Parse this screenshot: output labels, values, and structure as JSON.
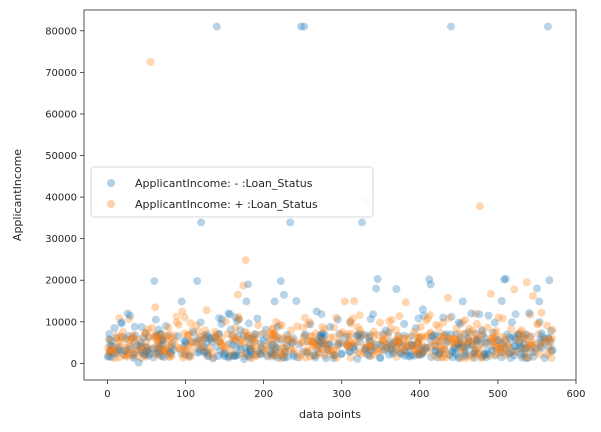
{
  "chart_data": {
    "type": "scatter",
    "xlabel": "data points",
    "ylabel": "ApplicantIncome",
    "xlim": [
      -30,
      600
    ],
    "ylim": [
      -4000,
      85000
    ],
    "xticks": [
      0,
      100,
      200,
      300,
      400,
      500,
      600
    ],
    "yticks": [
      0,
      10000,
      20000,
      30000,
      40000,
      50000,
      60000,
      70000,
      80000
    ],
    "grid": false,
    "legend_position": "center-left",
    "series": [
      {
        "name": "ApplicantIncome: - :Loan_Status",
        "color": "#1f77b4",
        "points": [
          [
            2,
            5800
          ],
          [
            5,
            1500
          ],
          [
            9,
            8500
          ],
          [
            12,
            2500
          ],
          [
            15,
            3800
          ],
          [
            18,
            9900
          ],
          [
            22,
            3000
          ],
          [
            26,
            12000
          ],
          [
            29,
            11500
          ],
          [
            33,
            2000
          ],
          [
            35,
            8800
          ],
          [
            38,
            4200
          ],
          [
            40,
            200
          ],
          [
            43,
            5000
          ],
          [
            46,
            6200
          ],
          [
            50,
            3000
          ],
          [
            54,
            2300
          ],
          [
            58,
            3500
          ],
          [
            60,
            19800
          ],
          [
            62,
            10500
          ],
          [
            66,
            2900
          ],
          [
            70,
            4500
          ],
          [
            72,
            1500
          ],
          [
            75,
            9000
          ],
          [
            80,
            2600
          ],
          [
            85,
            3300
          ],
          [
            90,
            6500
          ],
          [
            95,
            14900
          ],
          [
            100,
            5300
          ],
          [
            105,
            1900
          ],
          [
            110,
            7500
          ],
          [
            115,
            19800
          ],
          [
            118,
            2800
          ],
          [
            120,
            33900
          ],
          [
            125,
            6000
          ],
          [
            128,
            2200
          ],
          [
            135,
            1200
          ],
          [
            140,
            81000
          ],
          [
            142,
            1800
          ],
          [
            146,
            9500
          ],
          [
            150,
            2500
          ],
          [
            155,
            12000
          ],
          [
            157,
            11800
          ],
          [
            160,
            4500
          ],
          [
            165,
            1900
          ],
          [
            170,
            8000
          ],
          [
            175,
            1000
          ],
          [
            178,
            14900
          ],
          [
            180,
            19000
          ],
          [
            184,
            2700
          ],
          [
            188,
            7000
          ],
          [
            192,
            10800
          ],
          [
            196,
            2200
          ],
          [
            200,
            5500
          ],
          [
            205,
            1700
          ],
          [
            210,
            2500
          ],
          [
            214,
            14900
          ],
          [
            218,
            8800
          ],
          [
            222,
            19800
          ],
          [
            226,
            16500
          ],
          [
            230,
            4200
          ],
          [
            234,
            33900
          ],
          [
            238,
            2200
          ],
          [
            242,
            15000
          ],
          [
            248,
            81000
          ],
          [
            252,
            81000
          ],
          [
            256,
            2600
          ],
          [
            260,
            9400
          ],
          [
            264,
            1900
          ],
          [
            268,
            12500
          ],
          [
            272,
            6700
          ],
          [
            276,
            4800
          ],
          [
            280,
            1200
          ],
          [
            285,
            8800
          ],
          [
            290,
            2000
          ],
          [
            295,
            10500
          ],
          [
            300,
            2400
          ],
          [
            305,
            6400
          ],
          [
            310,
            2800
          ],
          [
            315,
            3900
          ],
          [
            320,
            1100
          ],
          [
            322,
            7000
          ],
          [
            326,
            33900
          ],
          [
            330,
            3500
          ],
          [
            335,
            1800
          ],
          [
            340,
            11800
          ],
          [
            344,
            18000
          ],
          [
            346,
            20300
          ],
          [
            350,
            4500
          ],
          [
            355,
            3100
          ],
          [
            360,
            7500
          ],
          [
            365,
            2300
          ],
          [
            370,
            17900
          ],
          [
            375,
            2500
          ],
          [
            380,
            9500
          ],
          [
            385,
            2800
          ],
          [
            390,
            4400
          ],
          [
            395,
            8500
          ],
          [
            400,
            2000
          ],
          [
            404,
            13000
          ],
          [
            408,
            3800
          ],
          [
            412,
            20200
          ],
          [
            414,
            19000
          ],
          [
            416,
            6500
          ],
          [
            420,
            2900
          ],
          [
            425,
            2300
          ],
          [
            430,
            11000
          ],
          [
            435,
            5200
          ],
          [
            440,
            81000
          ],
          [
            445,
            3500
          ],
          [
            450,
            9800
          ],
          [
            455,
            14900
          ],
          [
            458,
            1800
          ],
          [
            462,
            6000
          ],
          [
            466,
            12000
          ],
          [
            470,
            2600
          ],
          [
            474,
            5400
          ],
          [
            476,
            11800
          ],
          [
            480,
            7800
          ],
          [
            484,
            2200
          ],
          [
            488,
            11500
          ],
          [
            492,
            3100
          ],
          [
            496,
            9800
          ],
          [
            500,
            5600
          ],
          [
            505,
            15000
          ],
          [
            508,
            20200
          ],
          [
            510,
            20300
          ],
          [
            514,
            2400
          ],
          [
            518,
            9900
          ],
          [
            522,
            4200
          ],
          [
            526,
            6900
          ],
          [
            530,
            2100
          ],
          [
            535,
            3500
          ],
          [
            540,
            12100
          ],
          [
            545,
            2700
          ],
          [
            550,
            18000
          ],
          [
            553,
            14900
          ],
          [
            556,
            7200
          ],
          [
            560,
            1300
          ],
          [
            564,
            81000
          ],
          [
            566,
            20000
          ],
          [
            568,
            7800
          ],
          [
            570,
            3200
          ]
        ]
      },
      {
        "name": "ApplicantIncome: + :Loan_Status",
        "color": "#ff7f0e",
        "points": [
          [
            3,
            5700
          ],
          [
            7,
            3100
          ],
          [
            11,
            2800
          ],
          [
            14,
            5200
          ],
          [
            17,
            4300
          ],
          [
            20,
            7600
          ],
          [
            24,
            3600
          ],
          [
            28,
            2500
          ],
          [
            31,
            6000
          ],
          [
            34,
            4800
          ],
          [
            37,
            3300
          ],
          [
            41,
            5800
          ],
          [
            44,
            2700
          ],
          [
            48,
            7200
          ],
          [
            52,
            8200
          ],
          [
            55,
            72500
          ],
          [
            57,
            8500
          ],
          [
            61,
            13500
          ],
          [
            64,
            4200
          ],
          [
            68,
            6100
          ],
          [
            71,
            3000
          ],
          [
            74,
            4700
          ],
          [
            78,
            8600
          ],
          [
            82,
            1800
          ],
          [
            86,
            5400
          ],
          [
            89,
            9800
          ],
          [
            92,
            3700
          ],
          [
            96,
            12500
          ],
          [
            99,
            11000
          ],
          [
            103,
            6800
          ],
          [
            107,
            2600
          ],
          [
            111,
            4100
          ],
          [
            114,
            9100
          ],
          [
            117,
            5200
          ],
          [
            121,
            3400
          ],
          [
            124,
            6600
          ],
          [
            127,
            12800
          ],
          [
            131,
            3900
          ],
          [
            134,
            2500
          ],
          [
            138,
            7600
          ],
          [
            143,
            5300
          ],
          [
            147,
            4400
          ],
          [
            151,
            10100
          ],
          [
            154,
            7100
          ],
          [
            158,
            3200
          ],
          [
            161,
            5900
          ],
          [
            164,
            8600
          ],
          [
            167,
            16500
          ],
          [
            171,
            4900
          ],
          [
            174,
            18700
          ],
          [
            177,
            24800
          ],
          [
            181,
            6700
          ],
          [
            185,
            3600
          ],
          [
            189,
            5100
          ],
          [
            193,
            9200
          ],
          [
            197,
            4100
          ],
          [
            201,
            7300
          ],
          [
            204,
            3300
          ],
          [
            207,
            5500
          ],
          [
            211,
            8300
          ],
          [
            215,
            4000
          ],
          [
            219,
            6100
          ],
          [
            223,
            9100
          ],
          [
            227,
            3500
          ],
          [
            231,
            5800
          ],
          [
            235,
            7900
          ],
          [
            239,
            3000
          ],
          [
            243,
            8900
          ],
          [
            247,
            5000
          ],
          [
            251,
            6400
          ],
          [
            255,
            3200
          ],
          [
            259,
            9900
          ],
          [
            263,
            4300
          ],
          [
            267,
            7200
          ],
          [
            271,
            5600
          ],
          [
            274,
            3900
          ],
          [
            278,
            8200
          ],
          [
            282,
            4700
          ],
          [
            286,
            6300
          ],
          [
            289,
            3100
          ],
          [
            293,
            11000
          ],
          [
            297,
            5300
          ],
          [
            301,
            7500
          ],
          [
            304,
            14900
          ],
          [
            308,
            4000
          ],
          [
            312,
            9600
          ],
          [
            316,
            15000
          ],
          [
            319,
            5100
          ],
          [
            323,
            8000
          ],
          [
            327,
            3800
          ],
          [
            331,
            39000
          ],
          [
            334,
            6300
          ],
          [
            337,
            4400
          ],
          [
            341,
            7700
          ],
          [
            345,
            3300
          ],
          [
            349,
            9800
          ],
          [
            352,
            5400
          ],
          [
            356,
            6900
          ],
          [
            359,
            3600
          ],
          [
            363,
            8400
          ],
          [
            367,
            4800
          ],
          [
            371,
            5700
          ],
          [
            374,
            11400
          ],
          [
            378,
            3500
          ],
          [
            382,
            14700
          ],
          [
            386,
            6200
          ],
          [
            389,
            4100
          ],
          [
            393,
            7600
          ],
          [
            397,
            5000
          ],
          [
            401,
            8800
          ],
          [
            405,
            3800
          ],
          [
            409,
            6600
          ],
          [
            413,
            11600
          ],
          [
            417,
            4600
          ],
          [
            421,
            9300
          ],
          [
            424,
            5600
          ],
          [
            428,
            7100
          ],
          [
            432,
            3400
          ],
          [
            436,
            15800
          ],
          [
            440,
            6000
          ],
          [
            443,
            4400
          ],
          [
            447,
            8400
          ],
          [
            451,
            5400
          ],
          [
            454,
            3200
          ],
          [
            458,
            10400
          ],
          [
            462,
            5800
          ],
          [
            465,
            7300
          ],
          [
            469,
            3900
          ],
          [
            473,
            9500
          ],
          [
            477,
            37800
          ],
          [
            480,
            6800
          ],
          [
            484,
            4700
          ],
          [
            487,
            8600
          ],
          [
            491,
            16700
          ],
          [
            494,
            5300
          ],
          [
            498,
            7800
          ],
          [
            502,
            3700
          ],
          [
            506,
            10800
          ],
          [
            510,
            6100
          ],
          [
            513,
            4400
          ],
          [
            517,
            8300
          ],
          [
            521,
            17800
          ],
          [
            525,
            5600
          ],
          [
            529,
            7500
          ],
          [
            533,
            3600
          ],
          [
            537,
            19500
          ],
          [
            541,
            6300
          ],
          [
            545,
            16200
          ],
          [
            548,
            4700
          ],
          [
            552,
            9600
          ],
          [
            556,
            12200
          ],
          [
            559,
            5500
          ],
          [
            563,
            9100
          ],
          [
            567,
            2800
          ],
          [
            570,
            8100
          ]
        ]
      }
    ]
  }
}
